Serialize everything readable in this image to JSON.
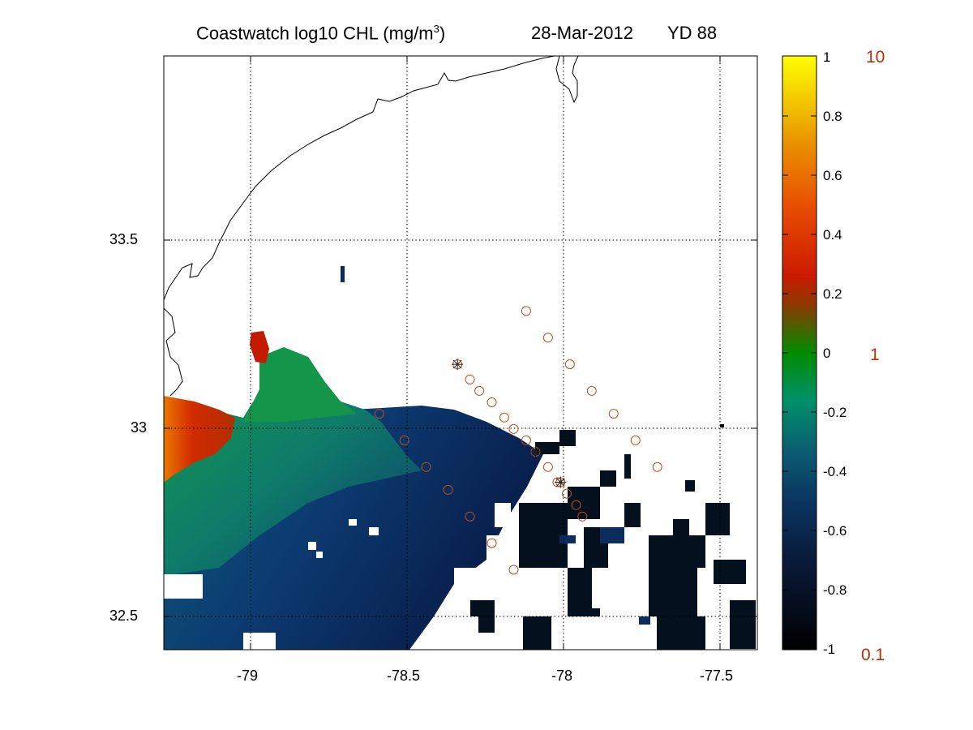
{
  "title": {
    "product": "Coastwatch  log10  CHL (mg/m",
    "product_exp": "3",
    "product_close": ")",
    "date": "28-Mar-2012",
    "yearday": "YD 88"
  },
  "axes": {
    "x_ticks": [
      "-79",
      "-78.5",
      "-78",
      "-77.5"
    ],
    "y_ticks": [
      "33.5",
      "33",
      "32.5"
    ]
  },
  "colorbar": {
    "log_labels": [
      "1",
      "0.8",
      "0.6",
      "0.4",
      "0.2",
      "0",
      "-0.2",
      "-0.4",
      "-0.6",
      "-0.8",
      "-1"
    ],
    "linear_labels": [
      "10",
      "1",
      "0.1"
    ],
    "stops": [
      "#000000",
      "#0a2a5c",
      "#00906a",
      "#008c00",
      "#cc1a00",
      "#e87800",
      "#ffff00"
    ]
  },
  "colors": {
    "station_marker": "#b8501a",
    "linear_label_color": "#b3300a",
    "coastline": "#000000"
  },
  "chart_data": {
    "type": "heatmap",
    "title": "Coastwatch  log10  CHL (mg/m3)   28-Mar-2012   YD 88",
    "xlim": [
      -79.28,
      -77.38
    ],
    "ylim": [
      32.42,
      33.98
    ],
    "x_ticks": [
      -79,
      -78.5,
      -78,
      -77.5
    ],
    "y_ticks": [
      33.5,
      33,
      32.5
    ],
    "color_range": [
      -1,
      1
    ],
    "grid": true,
    "stations": [
      {
        "lon": -78.12,
        "lat": 33.31
      },
      {
        "lon": -78.05,
        "lat": 33.24
      },
      {
        "lon": -77.98,
        "lat": 33.17
      },
      {
        "lon": -77.91,
        "lat": 33.1
      },
      {
        "lon": -77.84,
        "lat": 33.04
      },
      {
        "lon": -77.77,
        "lat": 32.97
      },
      {
        "lon": -77.7,
        "lat": 32.9
      },
      {
        "lon": -78.34,
        "lat": 33.17,
        "cross": true
      },
      {
        "lon": -78.3,
        "lat": 33.13
      },
      {
        "lon": -78.27,
        "lat": 33.1
      },
      {
        "lon": -78.23,
        "lat": 33.07
      },
      {
        "lon": -78.19,
        "lat": 33.03
      },
      {
        "lon": -78.16,
        "lat": 33.0
      },
      {
        "lon": -78.12,
        "lat": 32.97
      },
      {
        "lon": -78.09,
        "lat": 32.94,
        "cross": true
      },
      {
        "lon": -78.05,
        "lat": 32.9
      },
      {
        "lon": -78.02,
        "lat": 32.86
      },
      {
        "lon": -78.01,
        "lat": 32.86,
        "cross": true
      },
      {
        "lon": -77.99,
        "lat": 32.83
      },
      {
        "lon": -77.96,
        "lat": 32.8
      },
      {
        "lon": -77.94,
        "lat": 32.77
      },
      {
        "lon": -78.59,
        "lat": 33.04
      },
      {
        "lon": -78.51,
        "lat": 32.97
      },
      {
        "lon": -78.44,
        "lat": 32.9
      },
      {
        "lon": -78.37,
        "lat": 32.84
      },
      {
        "lon": -78.3,
        "lat": 32.77
      },
      {
        "lon": -78.23,
        "lat": 32.7
      },
      {
        "lon": -78.16,
        "lat": 32.63
      }
    ]
  }
}
